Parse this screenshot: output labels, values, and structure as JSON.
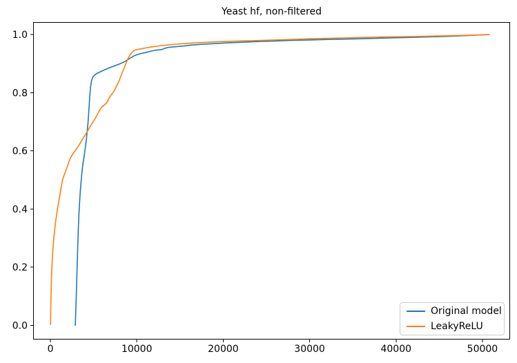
{
  "figure": {
    "title": "Yeast hf, non-filtered",
    "background_color": "#ffffff",
    "axes_edge_color": "#000000",
    "legend_border_color": "#cccccc"
  },
  "chart_data": {
    "type": "line",
    "title": "Yeast hf, non-filtered",
    "xlabel": "",
    "ylabel": "",
    "grid": false,
    "legend_position": "lower right",
    "xlim": [
      -2000,
      53200
    ],
    "ylim": [
      -0.049,
      1.043
    ],
    "x_ticks": [
      {
        "value": 0,
        "label": "0"
      },
      {
        "value": 10000,
        "label": "10000"
      },
      {
        "value": 20000,
        "label": "20000"
      },
      {
        "value": 30000,
        "label": "30000"
      },
      {
        "value": 40000,
        "label": "40000"
      },
      {
        "value": 50000,
        "label": "50000"
      }
    ],
    "y_ticks": [
      {
        "value": 0.0,
        "label": "0.0"
      },
      {
        "value": 0.2,
        "label": "0.2"
      },
      {
        "value": 0.4,
        "label": "0.4"
      },
      {
        "value": 0.6,
        "label": "0.6"
      },
      {
        "value": 0.8,
        "label": "0.8"
      },
      {
        "value": 1.0,
        "label": "1.0"
      }
    ],
    "series": [
      {
        "name": "Original model",
        "color": "#1f77b4",
        "points": [
          [
            2870,
            0.0
          ],
          [
            2905,
            0.02
          ],
          [
            2945,
            0.06
          ],
          [
            2990,
            0.1
          ],
          [
            3040,
            0.15
          ],
          [
            3090,
            0.2
          ],
          [
            3150,
            0.26
          ],
          [
            3220,
            0.32
          ],
          [
            3300,
            0.38
          ],
          [
            3390,
            0.43
          ],
          [
            3480,
            0.47
          ],
          [
            3580,
            0.505
          ],
          [
            3680,
            0.535
          ],
          [
            3790,
            0.561
          ],
          [
            3900,
            0.582
          ],
          [
            4000,
            0.603
          ],
          [
            4100,
            0.625
          ],
          [
            4180,
            0.645
          ],
          [
            4250,
            0.665
          ],
          [
            4350,
            0.697
          ],
          [
            4430,
            0.73
          ],
          [
            4500,
            0.763
          ],
          [
            4570,
            0.794
          ],
          [
            4650,
            0.82
          ],
          [
            4750,
            0.84
          ],
          [
            4880,
            0.852
          ],
          [
            5050,
            0.859
          ],
          [
            5300,
            0.865
          ],
          [
            5700,
            0.871
          ],
          [
            6100,
            0.8765
          ],
          [
            6500,
            0.8815
          ],
          [
            6900,
            0.8865
          ],
          [
            7300,
            0.891
          ],
          [
            7700,
            0.8955
          ],
          [
            8100,
            0.9
          ],
          [
            8600,
            0.907
          ],
          [
            9000,
            0.9145
          ],
          [
            9400,
            0.922
          ],
          [
            9800,
            0.9285
          ],
          [
            10300,
            0.9335
          ],
          [
            11000,
            0.938
          ],
          [
            11700,
            0.9435
          ],
          [
            12300,
            0.947
          ],
          [
            12900,
            0.9485
          ],
          [
            13300,
            0.9535
          ],
          [
            13700,
            0.956
          ],
          [
            14400,
            0.958
          ],
          [
            15300,
            0.9605
          ],
          [
            16300,
            0.964
          ],
          [
            17500,
            0.9665
          ],
          [
            19000,
            0.969
          ],
          [
            20500,
            0.9715
          ],
          [
            22000,
            0.9735
          ],
          [
            24000,
            0.976
          ],
          [
            26000,
            0.978
          ],
          [
            28000,
            0.98
          ],
          [
            30000,
            0.9815
          ],
          [
            32500,
            0.9835
          ],
          [
            35000,
            0.985
          ],
          [
            37500,
            0.987
          ],
          [
            40000,
            0.989
          ],
          [
            42500,
            0.991
          ],
          [
            45000,
            0.993
          ],
          [
            47000,
            0.995
          ],
          [
            48800,
            0.9975
          ],
          [
            50700,
            1.0
          ]
        ]
      },
      {
        "name": "LeakyReLU",
        "color": "#ff7f0e",
        "points": [
          [
            20,
            0.003
          ],
          [
            40,
            0.05
          ],
          [
            70,
            0.1
          ],
          [
            110,
            0.15
          ],
          [
            170,
            0.2
          ],
          [
            250,
            0.245
          ],
          [
            350,
            0.285
          ],
          [
            460,
            0.32
          ],
          [
            570,
            0.35
          ],
          [
            690,
            0.375
          ],
          [
            820,
            0.4
          ],
          [
            960,
            0.425
          ],
          [
            1110,
            0.45
          ],
          [
            1260,
            0.477
          ],
          [
            1400,
            0.5
          ],
          [
            1560,
            0.515
          ],
          [
            1760,
            0.53
          ],
          [
            1960,
            0.546
          ],
          [
            2160,
            0.565
          ],
          [
            2360,
            0.578
          ],
          [
            2620,
            0.59
          ],
          [
            2900,
            0.602
          ],
          [
            3200,
            0.615
          ],
          [
            3500,
            0.629
          ],
          [
            3800,
            0.644
          ],
          [
            4100,
            0.658
          ],
          [
            4400,
            0.673
          ],
          [
            4700,
            0.689
          ],
          [
            5000,
            0.703
          ],
          [
            5300,
            0.717
          ],
          [
            5600,
            0.735
          ],
          [
            5900,
            0.749
          ],
          [
            6200,
            0.757
          ],
          [
            6500,
            0.765
          ],
          [
            6800,
            0.782
          ],
          [
            7100,
            0.795
          ],
          [
            7400,
            0.807
          ],
          [
            7700,
            0.825
          ],
          [
            8000,
            0.845
          ],
          [
            8300,
            0.868
          ],
          [
            8600,
            0.89
          ],
          [
            8900,
            0.912
          ],
          [
            9200,
            0.93
          ],
          [
            9500,
            0.941
          ],
          [
            9800,
            0.947
          ],
          [
            10300,
            0.95
          ],
          [
            11000,
            0.954
          ],
          [
            11800,
            0.958
          ],
          [
            12600,
            0.961
          ],
          [
            13500,
            0.964
          ],
          [
            14500,
            0.967
          ],
          [
            15500,
            0.969
          ],
          [
            16800,
            0.9715
          ],
          [
            18000,
            0.9735
          ],
          [
            19500,
            0.9755
          ],
          [
            21000,
            0.977
          ],
          [
            22500,
            0.9785
          ],
          [
            24500,
            0.98
          ],
          [
            26500,
            0.982
          ],
          [
            28500,
            0.984
          ],
          [
            30000,
            0.9855
          ],
          [
            32000,
            0.987
          ],
          [
            34000,
            0.9885
          ],
          [
            36000,
            0.99
          ],
          [
            38000,
            0.9915
          ],
          [
            40000,
            0.9925
          ],
          [
            42000,
            0.9935
          ],
          [
            44000,
            0.9945
          ],
          [
            46000,
            0.996
          ],
          [
            48000,
            0.9975
          ],
          [
            49500,
            0.9985
          ],
          [
            50800,
            1.0
          ]
        ]
      }
    ]
  }
}
